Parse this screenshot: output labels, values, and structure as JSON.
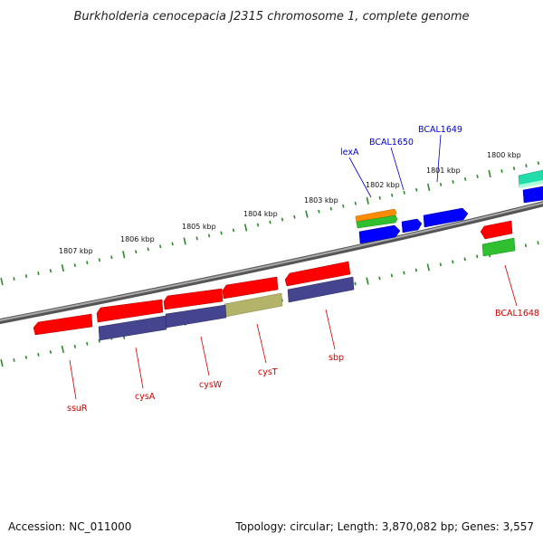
{
  "title": "Burkholderia cenocepacia J2315 chromosome 1, complete genome",
  "footer": {
    "accession": "Accession: NC_011000",
    "summary": "Topology: circular; Length: 3,870,082 bp; Genes: 3,557"
  },
  "colors": {
    "backbone": "#777777",
    "tick": "#2a8a2a",
    "forward_label": "#0000cc",
    "reverse_label": "#cc0000",
    "gene_red": "#ff0000",
    "gene_blue": "#0000ff",
    "gene_navy": "#45458f",
    "gene_olive": "#b3b36a",
    "gene_orange": "#ff8c00",
    "gene_green": "#2fbf2f",
    "gene_teal": "#22ddaa"
  },
  "kbp_labels": [
    {
      "id": "1800",
      "text": "1800 kbp"
    },
    {
      "id": "1801",
      "text": "1801 kbp"
    },
    {
      "id": "1802",
      "text": "1802 kbp"
    },
    {
      "id": "1803",
      "text": "1803 kbp"
    },
    {
      "id": "1804",
      "text": "1804 kbp"
    },
    {
      "id": "1805",
      "text": "1805 kbp"
    },
    {
      "id": "1806",
      "text": "1806 kbp"
    },
    {
      "id": "1807",
      "text": "1807 kbp"
    }
  ],
  "gene_labels": {
    "forward": [
      {
        "id": "lexA",
        "text": "lexA"
      },
      {
        "id": "BCAL1650",
        "text": "BCAL1650"
      },
      {
        "id": "BCAL1649",
        "text": "BCAL1649"
      }
    ],
    "reverse": [
      {
        "id": "BCAL1648",
        "text": "BCAL1648"
      },
      {
        "id": "sbp",
        "text": "sbp"
      },
      {
        "id": "cysT",
        "text": "cysT"
      },
      {
        "id": "cysW",
        "text": "cysW"
      },
      {
        "id": "cysA",
        "text": "cysA"
      },
      {
        "id": "ssuR",
        "text": "ssuR"
      }
    ]
  }
}
